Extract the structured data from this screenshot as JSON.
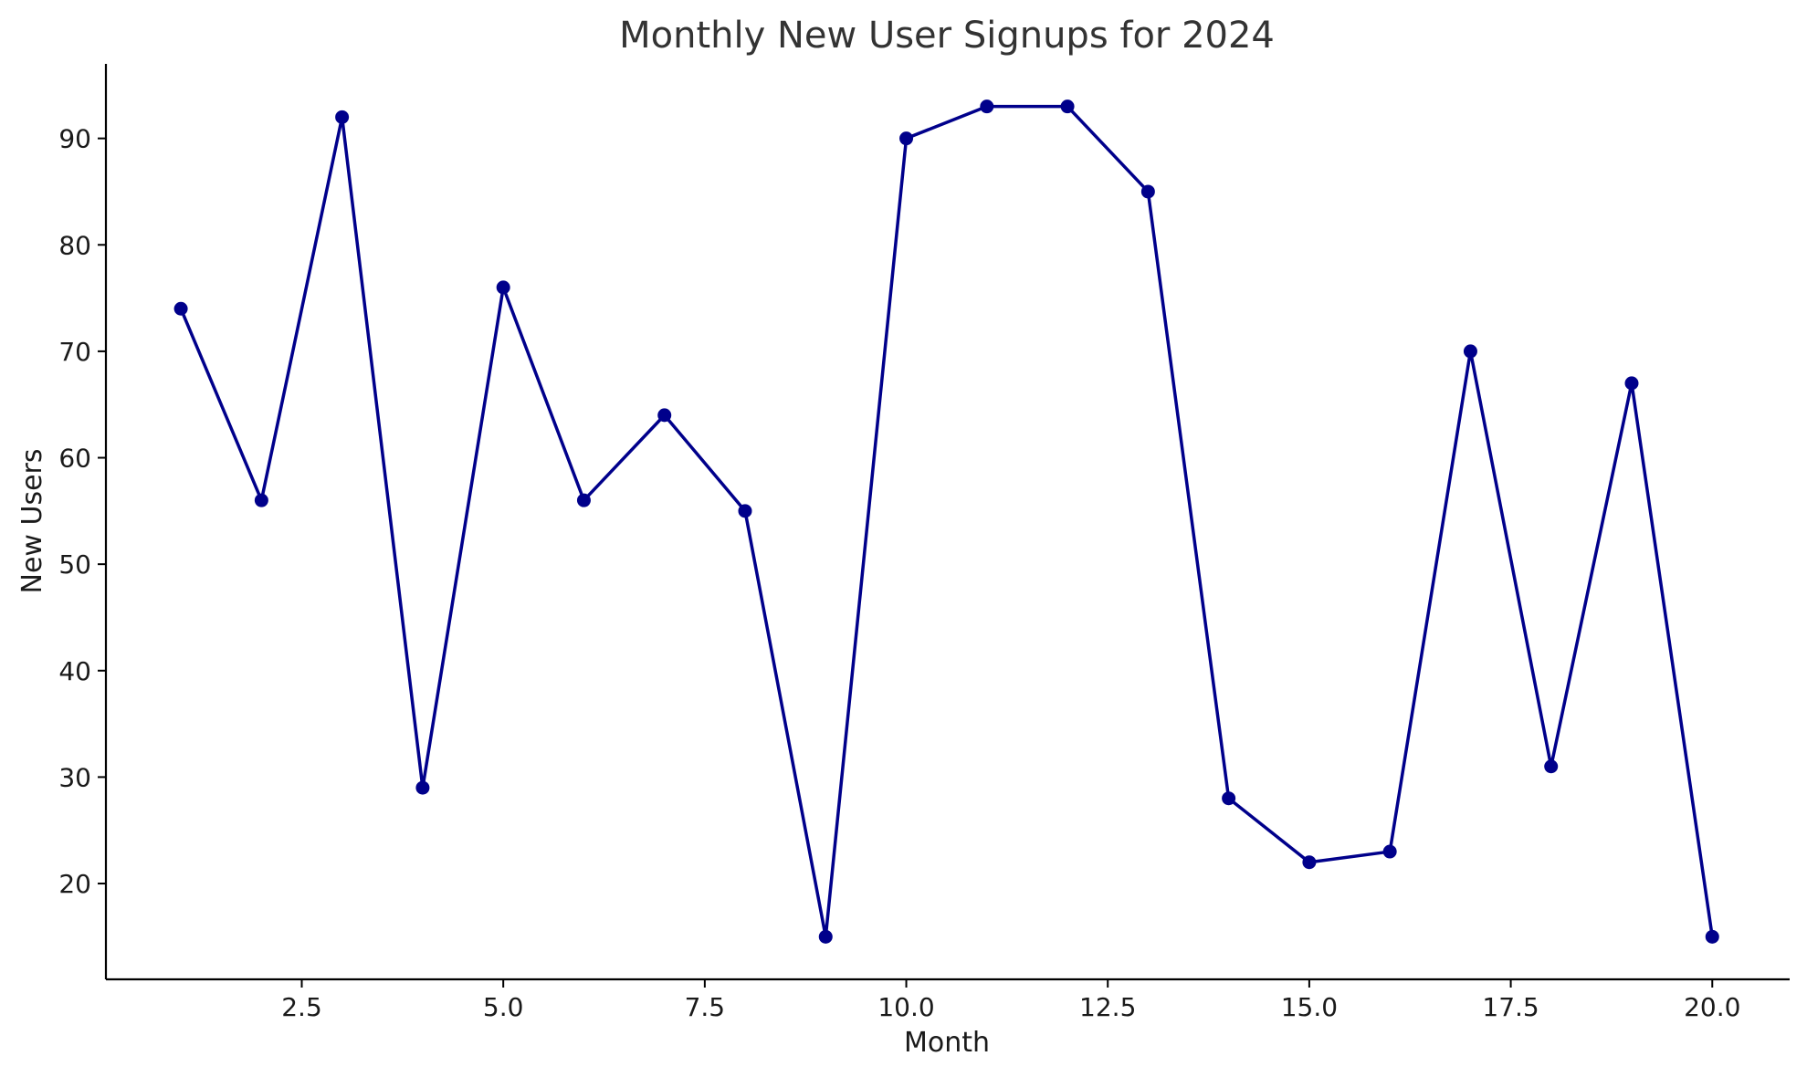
{
  "chart_data": {
    "type": "line",
    "title": "Monthly New User Signups for 2024",
    "xlabel": "Month",
    "ylabel": "New Users",
    "xlim": [
      0.07,
      20.96
    ],
    "ylim": [
      11,
      97
    ],
    "xticks": [
      2.5,
      5.0,
      7.5,
      10.0,
      12.5,
      15.0,
      17.5,
      20.0
    ],
    "xtick_labels": [
      "2.5",
      "5.0",
      "7.5",
      "10.0",
      "12.5",
      "15.0",
      "17.5",
      "20.0"
    ],
    "yticks": [
      20,
      30,
      40,
      50,
      60,
      70,
      80,
      90
    ],
    "ytick_labels": [
      "20",
      "30",
      "40",
      "50",
      "60",
      "70",
      "80",
      "90"
    ],
    "grid": false,
    "legend": "none",
    "x": [
      1,
      2,
      3,
      4,
      5,
      6,
      7,
      8,
      9,
      10,
      11,
      12,
      13,
      14,
      15,
      16,
      17,
      18,
      19,
      20
    ],
    "series": [
      {
        "values": [
          74,
          56,
          92,
          29,
          76,
          56,
          64,
          55,
          15,
          90,
          93,
          93,
          85,
          28,
          22,
          23,
          70,
          31,
          67,
          15
        ],
        "color": "#00008b",
        "marker": "circle"
      }
    ]
  }
}
